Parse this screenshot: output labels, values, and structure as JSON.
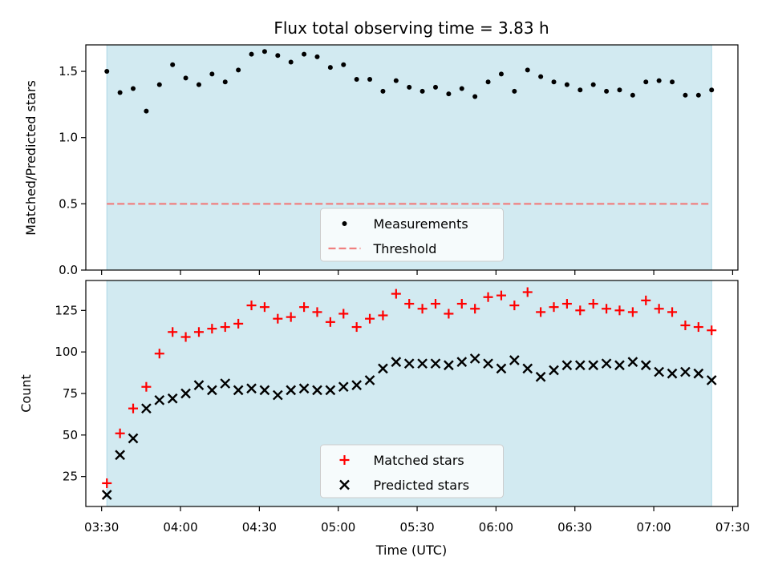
{
  "figure": {
    "title": "Flux total observing time = 3.83 h",
    "xlabel": "Time (UTC)",
    "x_tick_labels": [
      "03:30",
      "04:00",
      "04:30",
      "05:00",
      "05:30",
      "06:00",
      "06:30",
      "07:00",
      "07:30"
    ],
    "shaded_span_color": "#add8e6"
  },
  "chart_data": [
    {
      "type": "scatter",
      "ylabel": "Matched/Predicted stars",
      "xlim": [
        "03:24",
        "07:32"
      ],
      "ylim": [
        0,
        1.7
      ],
      "y_ticks": [
        0.0,
        0.5,
        1.0,
        1.5
      ],
      "y_tick_labels": [
        "0.0",
        "0.5",
        "1.0",
        "1.5"
      ],
      "shaded_span": [
        "03:32",
        "07:22"
      ],
      "threshold": 0.5,
      "legend_position": "bottom-center",
      "legend": [
        {
          "name": "Measurements",
          "marker": "dot",
          "color": "#000000"
        },
        {
          "name": "Threshold",
          "marker": "dashed-line",
          "color": "#f08080"
        }
      ],
      "series": [
        {
          "name": "Measurements",
          "color": "#000000",
          "x": [
            "03:32",
            "03:37",
            "03:42",
            "03:47",
            "03:52",
            "03:57",
            "04:02",
            "04:07",
            "04:12",
            "04:17",
            "04:22",
            "04:27",
            "04:32",
            "04:37",
            "04:42",
            "04:47",
            "04:52",
            "04:57",
            "05:02",
            "05:07",
            "05:12",
            "05:17",
            "05:22",
            "05:27",
            "05:32",
            "05:37",
            "05:42",
            "05:47",
            "05:52",
            "05:57",
            "06:02",
            "06:07",
            "06:12",
            "06:17",
            "06:22",
            "06:27",
            "06:32",
            "06:37",
            "06:42",
            "06:47",
            "06:52",
            "06:57",
            "07:02",
            "07:07",
            "07:12",
            "07:17",
            "07:22"
          ],
          "y": [
            1.5,
            1.34,
            1.37,
            1.2,
            1.4,
            1.55,
            1.45,
            1.4,
            1.48,
            1.42,
            1.51,
            1.63,
            1.65,
            1.62,
            1.57,
            1.63,
            1.61,
            1.53,
            1.55,
            1.44,
            1.44,
            1.35,
            1.43,
            1.38,
            1.35,
            1.38,
            1.33,
            1.37,
            1.31,
            1.42,
            1.48,
            1.35,
            1.51,
            1.46,
            1.42,
            1.4,
            1.36,
            1.4,
            1.35,
            1.36,
            1.32,
            1.42,
            1.43,
            1.42,
            1.32,
            1.32,
            1.36
          ]
        },
        {
          "name": "Threshold",
          "color": "#f08080",
          "x": [
            "03:32",
            "07:22"
          ],
          "y": [
            0.5,
            0.5
          ]
        }
      ]
    },
    {
      "type": "scatter",
      "ylabel": "Count",
      "xlim": [
        "03:24",
        "07:32"
      ],
      "ylim": [
        7,
        143
      ],
      "y_ticks": [
        25,
        50,
        75,
        100,
        125
      ],
      "y_tick_labels": [
        "25",
        "50",
        "75",
        "100",
        "125"
      ],
      "shaded_span": [
        "03:32",
        "07:22"
      ],
      "legend_position": "bottom-center",
      "legend": [
        {
          "name": "Matched stars",
          "marker": "plus",
          "color": "#ff0000"
        },
        {
          "name": "Predicted stars",
          "marker": "cross",
          "color": "#000000"
        }
      ],
      "series": [
        {
          "name": "Matched stars",
          "color": "#ff0000",
          "marker": "plus",
          "x": [
            "03:32",
            "03:37",
            "03:42",
            "03:47",
            "03:52",
            "03:57",
            "04:02",
            "04:07",
            "04:12",
            "04:17",
            "04:22",
            "04:27",
            "04:32",
            "04:37",
            "04:42",
            "04:47",
            "04:52",
            "04:57",
            "05:02",
            "05:07",
            "05:12",
            "05:17",
            "05:22",
            "05:27",
            "05:32",
            "05:37",
            "05:42",
            "05:47",
            "05:52",
            "05:57",
            "06:02",
            "06:07",
            "06:12",
            "06:17",
            "06:22",
            "06:27",
            "06:32",
            "06:37",
            "06:42",
            "06:47",
            "06:52",
            "06:57",
            "07:02",
            "07:07",
            "07:12",
            "07:17",
            "07:22"
          ],
          "y": [
            21,
            51,
            66,
            79,
            99,
            112,
            109,
            112,
            114,
            115,
            117,
            128,
            127,
            120,
            121,
            127,
            124,
            118,
            123,
            115,
            120,
            122,
            135,
            129,
            126,
            129,
            123,
            129,
            126,
            133,
            134,
            128,
            136,
            124,
            127,
            129,
            125,
            129,
            126,
            125,
            124,
            131,
            126,
            124,
            116,
            115,
            113
          ]
        },
        {
          "name": "Predicted stars",
          "color": "#000000",
          "marker": "cross",
          "x": [
            "03:32",
            "03:37",
            "03:42",
            "03:47",
            "03:52",
            "03:57",
            "04:02",
            "04:07",
            "04:12",
            "04:17",
            "04:22",
            "04:27",
            "04:32",
            "04:37",
            "04:42",
            "04:47",
            "04:52",
            "04:57",
            "05:02",
            "05:07",
            "05:12",
            "05:17",
            "05:22",
            "05:27",
            "05:32",
            "05:37",
            "05:42",
            "05:47",
            "05:52",
            "05:57",
            "06:02",
            "06:07",
            "06:12",
            "06:17",
            "06:22",
            "06:27",
            "06:32",
            "06:37",
            "06:42",
            "06:47",
            "06:52",
            "06:57",
            "07:02",
            "07:07",
            "07:12",
            "07:17",
            "07:22"
          ],
          "y": [
            14,
            38,
            48,
            66,
            71,
            72,
            75,
            80,
            77,
            81,
            77,
            78,
            77,
            74,
            77,
            78,
            77,
            77,
            79,
            80,
            83,
            90,
            94,
            93,
            93,
            93,
            92,
            94,
            96,
            93,
            90,
            95,
            90,
            85,
            89,
            92,
            92,
            92,
            93,
            92,
            94,
            92,
            88,
            87,
            88,
            87,
            83
          ]
        }
      ]
    }
  ]
}
